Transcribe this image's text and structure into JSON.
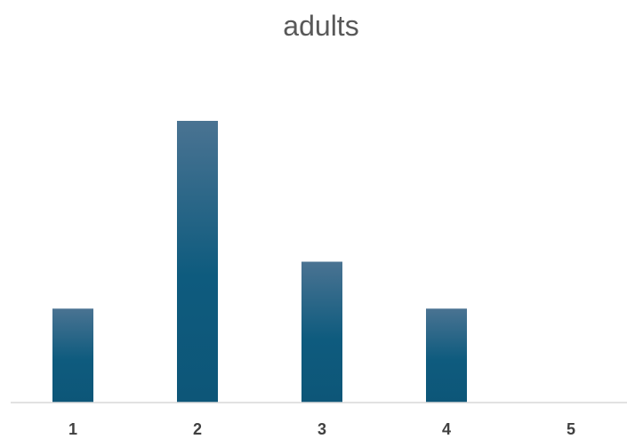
{
  "chart_data": {
    "type": "bar",
    "title": "adults",
    "categories": [
      "1",
      "2",
      "3",
      "4",
      "5"
    ],
    "values": [
      2,
      6,
      3,
      2,
      0
    ],
    "xlabel": "",
    "ylabel": "",
    "ylim": [
      0,
      6
    ],
    "grid": false,
    "legend": "none",
    "bar_color_top": "#4a7392",
    "bar_color_bottom": "#0d5678",
    "axis_color": "#d9d9d9"
  }
}
